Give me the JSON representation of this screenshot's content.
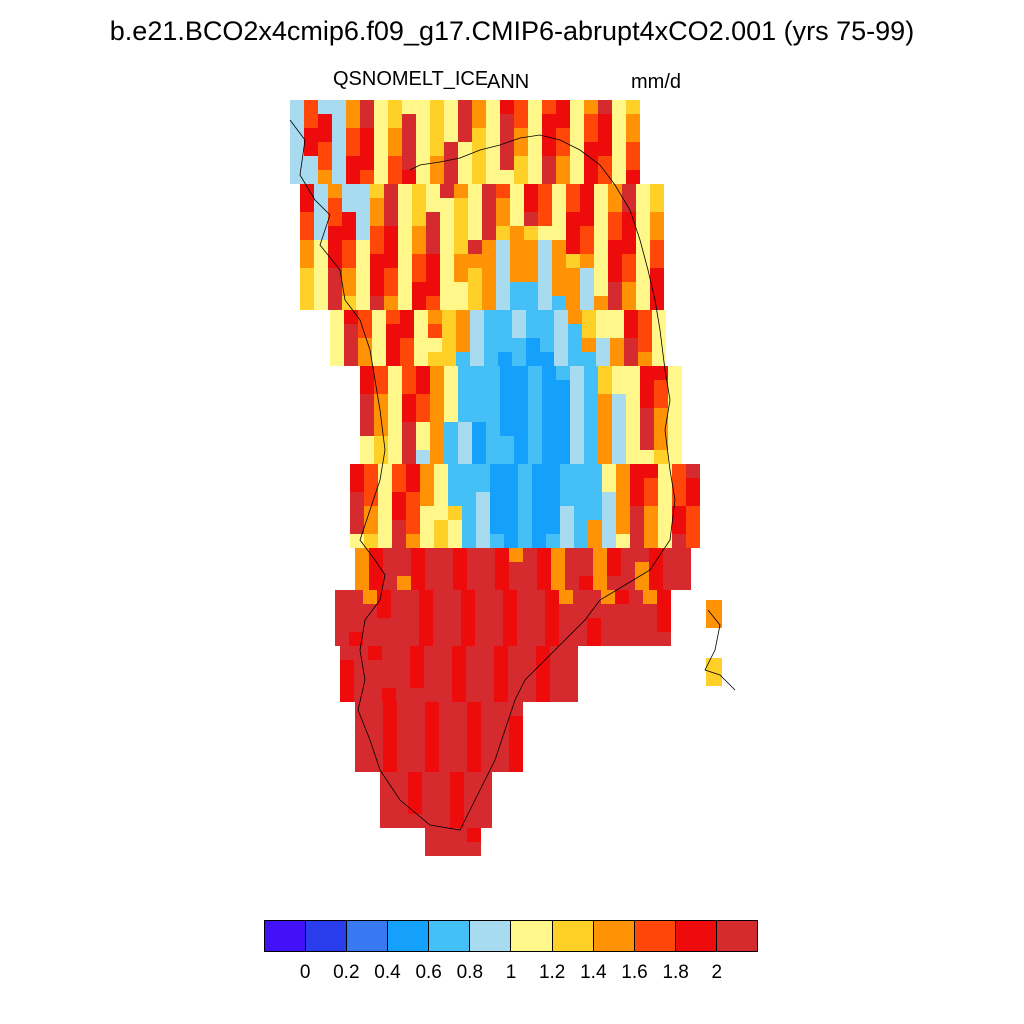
{
  "title": "b.e21.BCO2x4cmip6.f09_g17.CMIP6-abrupt4xCO2.001 (yrs 75-99)",
  "variable": "QSNOMELT_ICE",
  "season": "ANN",
  "units": "mm/d",
  "colorbar": {
    "colors": [
      "#4211f7",
      "#2a3ded",
      "#3878f0",
      "#14a0fb",
      "#45c0f6",
      "#a8daf0",
      "#fff78a",
      "#ffd027",
      "#ff9205",
      "#ff470a",
      "#ee0b0b",
      "#d52b2e"
    ],
    "labels": [
      "0",
      "0.2",
      "0.4",
      "0.6",
      "0.8",
      "1",
      "1.2",
      "1.4",
      "1.6",
      "1.8",
      "2"
    ]
  },
  "chart_data": {
    "type": "heatmap",
    "title": "b.e21.BCO2x4cmip6.f09_g17.CMIP6-abrupt4xCO2.001 (yrs 75-99)",
    "variable": "QSNOMELT_ICE",
    "period": "ANN",
    "units": "mm/d",
    "region": "Greenland",
    "levels": [
      0,
      0.2,
      0.4,
      0.6,
      0.8,
      1,
      1.2,
      1.4,
      1.6,
      1.8,
      2
    ],
    "value_range": [
      0,
      2
    ],
    "description_of_pattern": "Interior values 0.6-1 mm/d, ring of 1.2-2 mm/d near margins, southern half mostly >2 mm/d"
  }
}
